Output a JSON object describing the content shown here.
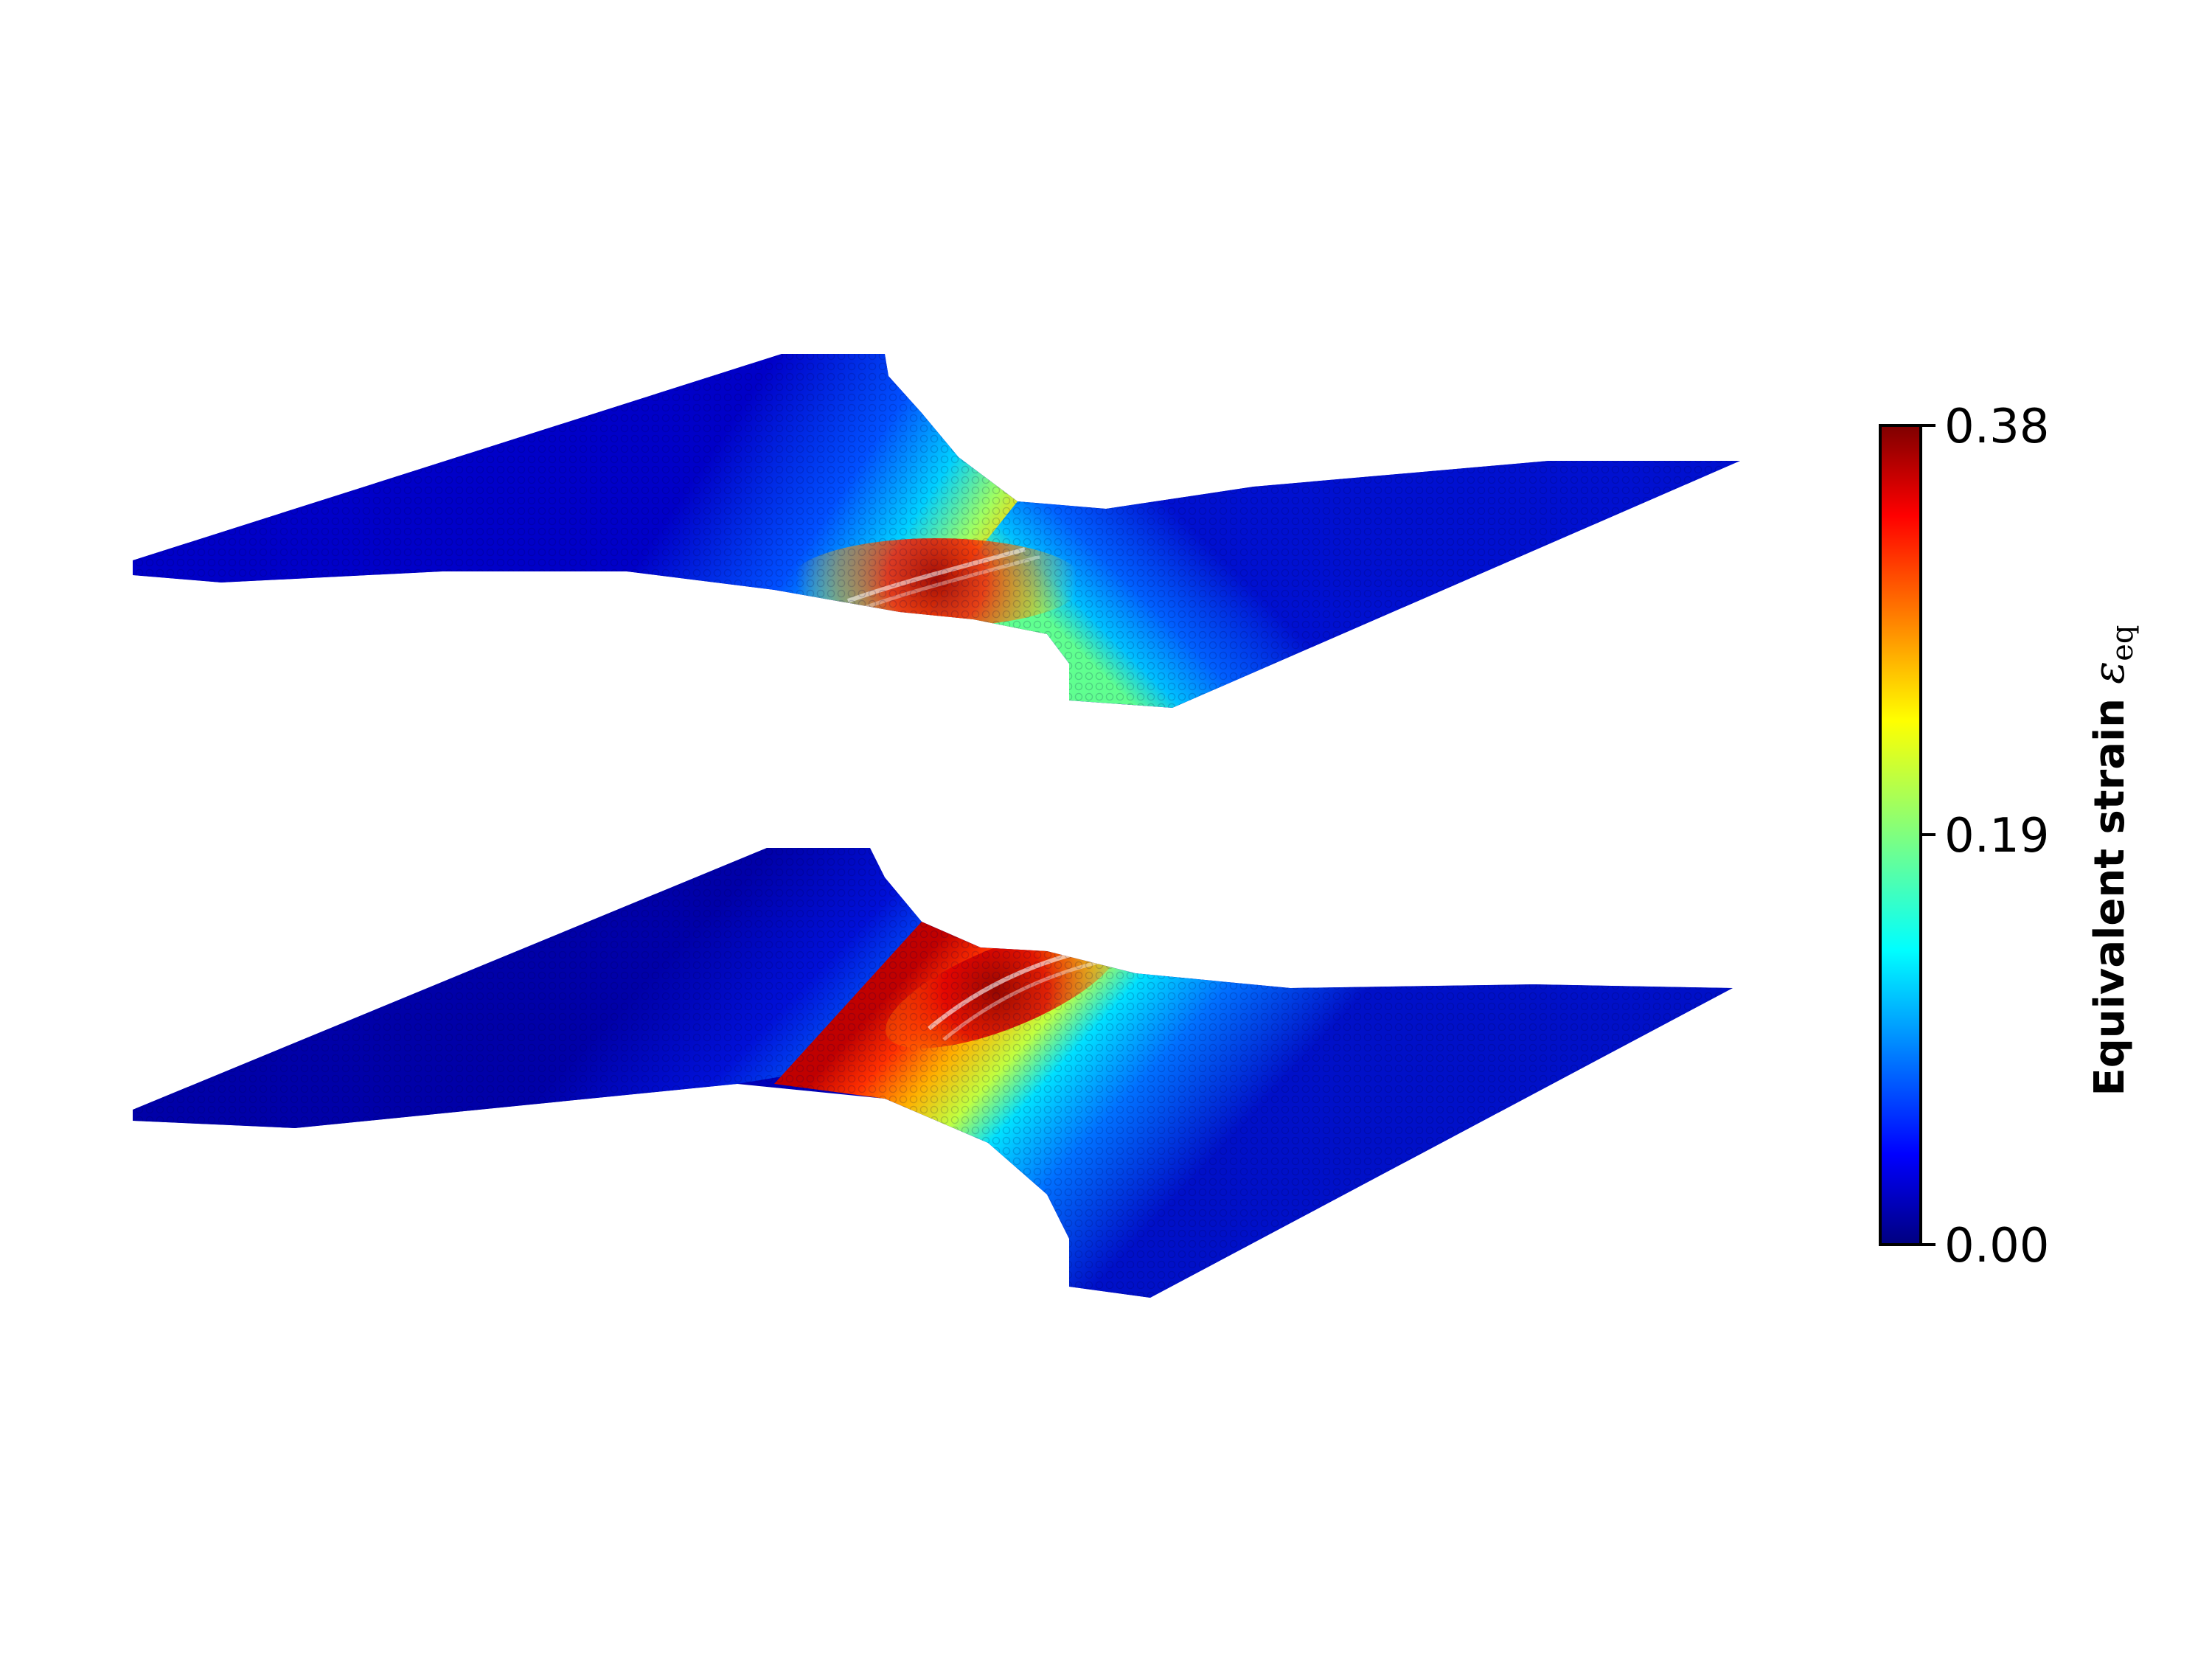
{
  "chart_data": {
    "type": "scatter",
    "description_free": true,
    "panels": [
      {
        "name": "",
        "peak_strain_location": "center-lower band"
      },
      {
        "name": "",
        "peak_strain_location": "center-upper band"
      }
    ],
    "colorbar": {
      "label": "Equivalent strain",
      "symbol": "ε",
      "subscript": "eq",
      "vmin": 0.0,
      "vmax": 0.38,
      "ticks": [
        "0.00",
        "0.19",
        "0.38"
      ],
      "colormap": "jet",
      "colors": [
        "#00007f",
        "#0000ff",
        "#007fff",
        "#00ffff",
        "#7fff7f",
        "#ffff00",
        "#ff7f00",
        "#ff0000",
        "#7f0000"
      ]
    }
  }
}
